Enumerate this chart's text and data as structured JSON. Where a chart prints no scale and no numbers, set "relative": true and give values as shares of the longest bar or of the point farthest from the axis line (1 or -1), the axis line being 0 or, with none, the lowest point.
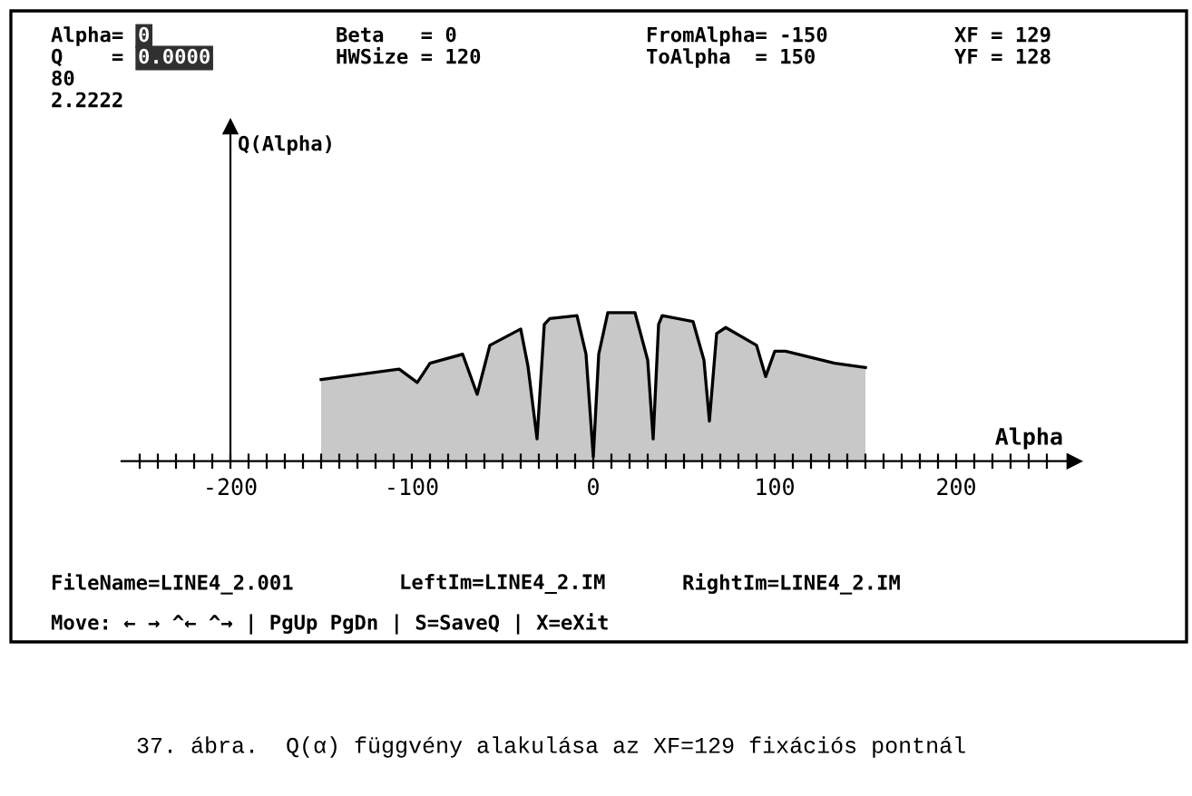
{
  "chart_data": {
    "type": "area",
    "relative": true,
    "xlabel": "Alpha",
    "x": [
      -150,
      -107,
      -97,
      -90,
      -72,
      -64,
      -57,
      -40,
      -36,
      -31,
      -27,
      -24,
      -9,
      -4,
      0,
      3,
      8,
      23,
      30,
      33,
      36,
      38,
      55,
      61,
      64,
      68,
      73,
      90,
      95,
      100,
      106,
      133,
      150
    ],
    "series": [
      {
        "color": "#c8c8c8",
        "values": [
          0.55,
          0.62,
          0.53,
          0.66,
          0.72,
          0.45,
          0.78,
          0.89,
          0.64,
          0.15,
          0.92,
          0.96,
          0.98,
          0.72,
          0.03,
          0.72,
          1,
          1,
          0.68,
          0.15,
          0.92,
          0.98,
          0.94,
          0.68,
          0.27,
          0.86,
          0.9,
          0.78,
          0.57,
          0.74,
          0.74,
          0.66,
          0.63
        ]
      }
    ],
    "xlim": [
      -260,
      265
    ],
    "xticks": [
      {
        "value": -250,
        "label": null
      },
      {
        "value": -240,
        "label": null
      },
      {
        "value": -230,
        "label": null
      },
      {
        "value": -220,
        "label": null
      },
      {
        "value": -210,
        "label": null
      },
      -200,
      {
        "value": -190,
        "label": null
      },
      {
        "value": -180,
        "label": null
      },
      {
        "value": -170,
        "label": null
      },
      {
        "value": -160,
        "label": null
      },
      {
        "value": -150,
        "label": null
      },
      {
        "value": -140,
        "label": null
      },
      {
        "value": -130,
        "label": null
      },
      {
        "value": -120,
        "label": null
      },
      {
        "value": -110,
        "label": null
      },
      -100,
      {
        "value": -90,
        "label": null
      },
      {
        "value": -80,
        "label": null
      },
      {
        "value": -70,
        "label": null
      },
      {
        "value": -60,
        "label": null
      },
      {
        "value": -50,
        "label": null
      },
      {
        "value": -40,
        "label": null
      },
      {
        "value": -30,
        "label": null
      },
      {
        "value": -20,
        "label": null
      },
      {
        "value": -10,
        "label": null
      },
      0,
      {
        "value": 10,
        "label": null
      },
      {
        "value": 20,
        "label": null
      },
      {
        "value": 30,
        "label": null
      },
      {
        "value": 40,
        "label": null
      },
      {
        "value": 50,
        "label": null
      },
      {
        "value": 60,
        "label": null
      },
      {
        "value": 70,
        "label": null
      },
      {
        "value": 80,
        "label": null
      },
      {
        "value": 90,
        "label": null
      },
      100,
      {
        "value": 110,
        "label": null
      },
      {
        "value": 120,
        "label": null
      },
      {
        "value": 130,
        "label": null
      },
      {
        "value": 140,
        "label": null
      },
      {
        "value": 150,
        "label": null
      },
      {
        "value": 160,
        "label": null
      },
      {
        "value": 170,
        "label": null
      },
      {
        "value": 180,
        "label": null
      },
      {
        "value": 190,
        "label": null
      },
      200,
      {
        "value": 210,
        "label": null
      },
      {
        "value": 220,
        "label": null
      },
      {
        "value": 230,
        "label": null
      },
      {
        "value": 240,
        "label": null
      },
      {
        "value": 250,
        "label": null
      }
    ],
    "legend": false,
    "annotations": [
      "Alpha=",
      "0",
      "Q    =",
      "0.0000",
      "80",
      "2.2222",
      "Beta   = 0",
      "HWSize = 120",
      "FromAlpha= -150",
      "ToAlpha  = 150",
      "XF = 129",
      "YF = 128",
      "FileName=LINE4_2.001",
      "LeftIm=LINE4_2.IM",
      "RightIm=LINE4_2.IM",
      "Move: ← → ^← ^→ | PgUp PgDn | S=SaveQ | X=eXit",
      "37. ábra.  Q(α) függvény alakulása az XF=129 fixációs pontnál",
      "Q(Alpha)"
    ]
  }
}
